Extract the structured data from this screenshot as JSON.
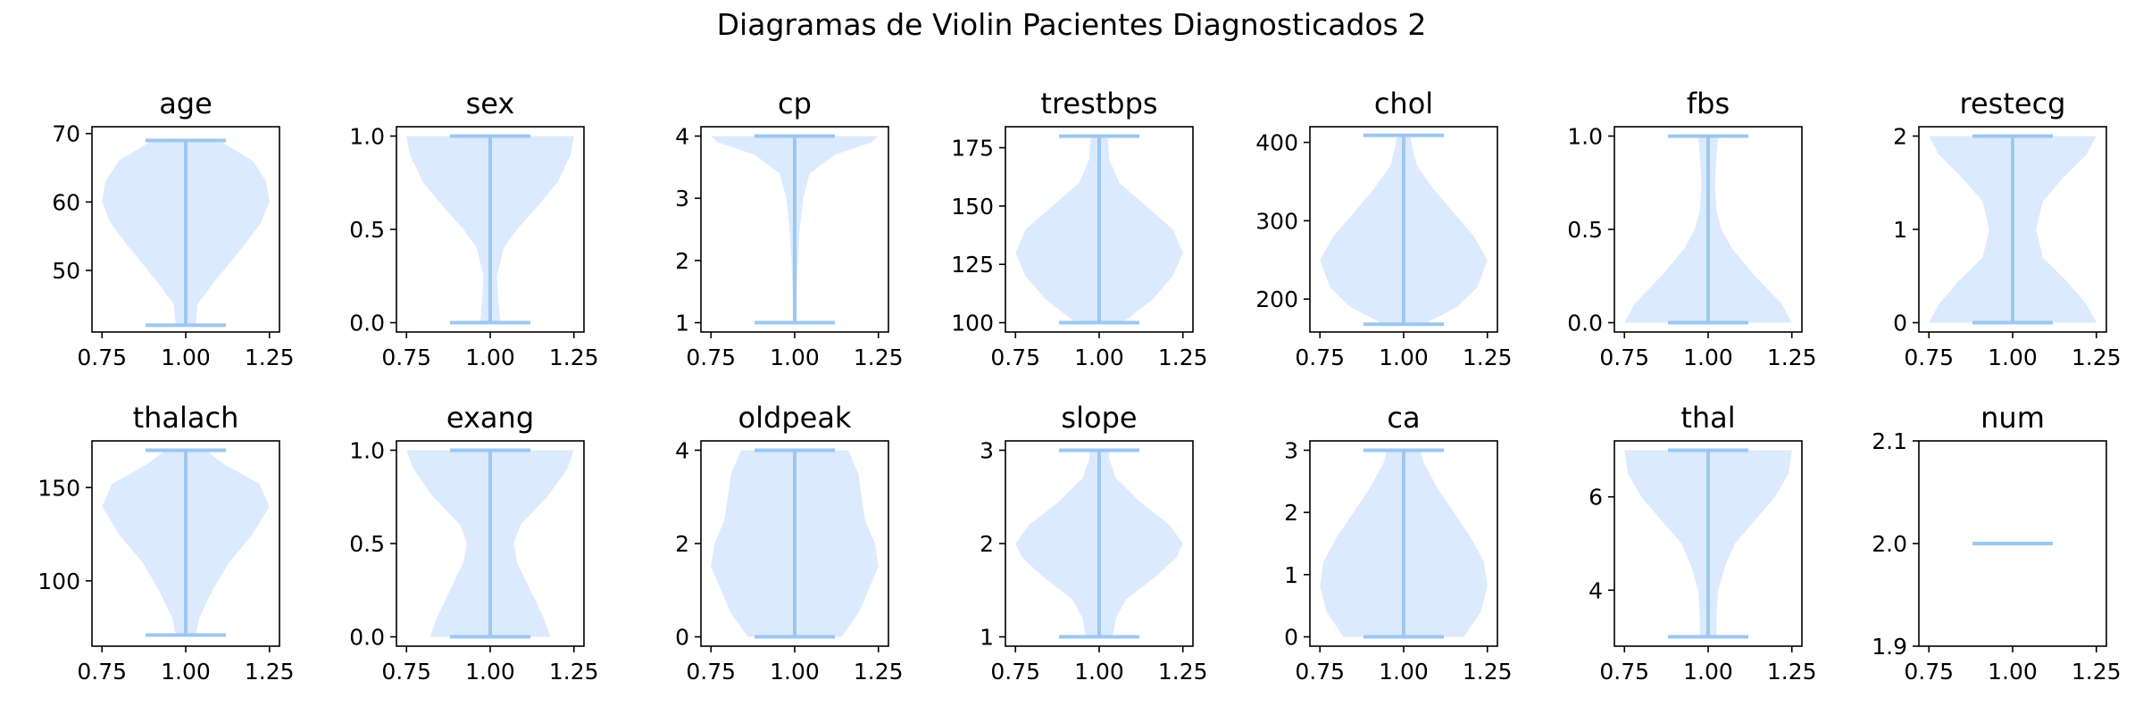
{
  "figure": {
    "title": "Diagramas de Violin Pacientes Diagnosticados 2"
  },
  "colors": {
    "violin_fill": "#dceaff",
    "violin_line": "#9cc7f2",
    "axis": "#000000"
  },
  "chart_data": [
    {
      "type": "violin",
      "title": "age",
      "xlim": [
        0.72,
        1.28
      ],
      "xticks": [
        "0.75",
        "1.00",
        "1.25"
      ],
      "xtick_values": [
        0.75,
        1.0,
        1.25
      ],
      "ylim": [
        41,
        71
      ],
      "yticks": [
        "50",
        "60",
        "70"
      ],
      "ytick_values": [
        50,
        60,
        70
      ],
      "min": 42,
      "max": 69,
      "density": [
        [
          42,
          0.03
        ],
        [
          45,
          0.035
        ],
        [
          48,
          0.08
        ],
        [
          51,
          0.13
        ],
        [
          54,
          0.18
        ],
        [
          57,
          0.225
        ],
        [
          60,
          0.25
        ],
        [
          63,
          0.24
        ],
        [
          66,
          0.2
        ],
        [
          69,
          0.1
        ]
      ]
    },
    {
      "type": "violin",
      "title": "sex",
      "xlim": [
        0.72,
        1.28
      ],
      "xticks": [
        "0.75",
        "1.00",
        "1.25"
      ],
      "xtick_values": [
        0.75,
        1.0,
        1.25
      ],
      "ylim": [
        -0.05,
        1.05
      ],
      "yticks": [
        "0.0",
        "0.5",
        "1.0"
      ],
      "ytick_values": [
        0.0,
        0.5,
        1.0
      ],
      "min": 0,
      "max": 1,
      "density": [
        [
          0,
          0.03
        ],
        [
          0.1,
          0.025
        ],
        [
          0.25,
          0.02
        ],
        [
          0.4,
          0.04
        ],
        [
          0.5,
          0.08
        ],
        [
          0.6,
          0.13
        ],
        [
          0.75,
          0.2
        ],
        [
          0.9,
          0.24
        ],
        [
          1.0,
          0.25
        ]
      ]
    },
    {
      "type": "violin",
      "title": "cp",
      "xlim": [
        0.72,
        1.28
      ],
      "xticks": [
        "0.75",
        "1.00",
        "1.25"
      ],
      "xtick_values": [
        0.75,
        1.0,
        1.25
      ],
      "ylim": [
        0.85,
        4.15
      ],
      "yticks": [
        "1",
        "2",
        "3",
        "4"
      ],
      "ytick_values": [
        1,
        2,
        3,
        4
      ],
      "min": 1,
      "max": 4,
      "density": [
        [
          1.0,
          0.005
        ],
        [
          1.5,
          0.006
        ],
        [
          2.0,
          0.01
        ],
        [
          2.5,
          0.015
        ],
        [
          3.0,
          0.025
        ],
        [
          3.4,
          0.045
        ],
        [
          3.7,
          0.12
        ],
        [
          3.9,
          0.23
        ],
        [
          4.0,
          0.25
        ]
      ]
    },
    {
      "type": "violin",
      "title": "trestbps",
      "xlim": [
        0.72,
        1.28
      ],
      "xticks": [
        "0.75",
        "1.00",
        "1.25"
      ],
      "xtick_values": [
        0.75,
        1.0,
        1.25
      ],
      "ylim": [
        96,
        184
      ],
      "yticks": [
        "100",
        "125",
        "150",
        "175"
      ],
      "ytick_values": [
        100,
        125,
        150,
        175
      ],
      "min": 100,
      "max": 180,
      "density": [
        [
          100,
          0.07
        ],
        [
          110,
          0.16
        ],
        [
          120,
          0.22
        ],
        [
          130,
          0.25
        ],
        [
          140,
          0.22
        ],
        [
          150,
          0.14
        ],
        [
          160,
          0.06
        ],
        [
          170,
          0.03
        ],
        [
          180,
          0.025
        ]
      ]
    },
    {
      "type": "violin",
      "title": "chol",
      "xlim": [
        0.72,
        1.28
      ],
      "xticks": [
        "0.75",
        "1.00",
        "1.25"
      ],
      "xtick_values": [
        0.75,
        1.0,
        1.25
      ],
      "ylim": [
        158,
        420
      ],
      "yticks": [
        "200",
        "300",
        "400"
      ],
      "ytick_values": [
        200,
        300,
        400
      ],
      "min": 168,
      "max": 409,
      "density": [
        [
          168,
          0.06
        ],
        [
          190,
          0.16
        ],
        [
          215,
          0.22
        ],
        [
          250,
          0.25
        ],
        [
          280,
          0.21
        ],
        [
          310,
          0.15
        ],
        [
          340,
          0.09
        ],
        [
          370,
          0.04
        ],
        [
          395,
          0.025
        ],
        [
          409,
          0.02
        ]
      ]
    },
    {
      "type": "violin",
      "title": "fbs",
      "xlim": [
        0.72,
        1.28
      ],
      "xticks": [
        "0.75",
        "1.00",
        "1.25"
      ],
      "xtick_values": [
        0.75,
        1.0,
        1.25
      ],
      "ylim": [
        -0.05,
        1.05
      ],
      "yticks": [
        "0.0",
        "0.5",
        "1.0"
      ],
      "ytick_values": [
        0.0,
        0.5,
        1.0
      ],
      "min": 0,
      "max": 1,
      "density": [
        [
          0,
          0.25
        ],
        [
          0.1,
          0.22
        ],
        [
          0.25,
          0.14
        ],
        [
          0.4,
          0.07
        ],
        [
          0.5,
          0.04
        ],
        [
          0.6,
          0.025
        ],
        [
          0.75,
          0.02
        ],
        [
          0.9,
          0.025
        ],
        [
          1.0,
          0.03
        ]
      ]
    },
    {
      "type": "violin",
      "title": "restecg",
      "xlim": [
        0.72,
        1.28
      ],
      "xticks": [
        "0.75",
        "1.00",
        "1.25"
      ],
      "xtick_values": [
        0.75,
        1.0,
        1.25
      ],
      "ylim": [
        -0.1,
        2.1
      ],
      "yticks": [
        "0",
        "1",
        "2"
      ],
      "ytick_values": [
        0,
        1,
        2
      ],
      "min": 0,
      "max": 2,
      "density": [
        [
          0,
          0.25
        ],
        [
          0.2,
          0.22
        ],
        [
          0.45,
          0.16
        ],
        [
          0.7,
          0.09
        ],
        [
          1.0,
          0.07
        ],
        [
          1.3,
          0.09
        ],
        [
          1.55,
          0.15
        ],
        [
          1.8,
          0.22
        ],
        [
          2.0,
          0.25
        ]
      ]
    },
    {
      "type": "violin",
      "title": "thalach",
      "xlim": [
        0.72,
        1.28
      ],
      "xticks": [
        "0.75",
        "1.00",
        "1.25"
      ],
      "xtick_values": [
        0.75,
        1.0,
        1.25
      ],
      "ylim": [
        65,
        175
      ],
      "yticks": [
        "100",
        "150"
      ],
      "ytick_values": [
        100,
        150
      ],
      "min": 71,
      "max": 170,
      "density": [
        [
          71,
          0.03
        ],
        [
          80,
          0.04
        ],
        [
          95,
          0.08
        ],
        [
          110,
          0.13
        ],
        [
          125,
          0.2
        ],
        [
          140,
          0.25
        ],
        [
          152,
          0.22
        ],
        [
          162,
          0.12
        ],
        [
          170,
          0.06
        ]
      ]
    },
    {
      "type": "violin",
      "title": "exang",
      "xlim": [
        0.72,
        1.28
      ],
      "xticks": [
        "0.75",
        "1.00",
        "1.25"
      ],
      "xtick_values": [
        0.75,
        1.0,
        1.25
      ],
      "ylim": [
        -0.05,
        1.05
      ],
      "yticks": [
        "0.0",
        "0.5",
        "1.0"
      ],
      "ytick_values": [
        0.0,
        0.5,
        1.0
      ],
      "min": 0,
      "max": 1,
      "density": [
        [
          0,
          0.18
        ],
        [
          0.1,
          0.16
        ],
        [
          0.25,
          0.12
        ],
        [
          0.4,
          0.08
        ],
        [
          0.5,
          0.07
        ],
        [
          0.6,
          0.09
        ],
        [
          0.75,
          0.17
        ],
        [
          0.9,
          0.23
        ],
        [
          1.0,
          0.25
        ]
      ]
    },
    {
      "type": "violin",
      "title": "oldpeak",
      "xlim": [
        0.72,
        1.28
      ],
      "xticks": [
        "0.75",
        "1.00",
        "1.25"
      ],
      "xtick_values": [
        0.75,
        1.0,
        1.25
      ],
      "ylim": [
        -0.2,
        4.2
      ],
      "yticks": [
        "0",
        "2",
        "4"
      ],
      "ytick_values": [
        0,
        2,
        4
      ],
      "min": 0,
      "max": 4,
      "density": [
        [
          0,
          0.14
        ],
        [
          0.5,
          0.19
        ],
        [
          1.0,
          0.22
        ],
        [
          1.5,
          0.25
        ],
        [
          2.0,
          0.24
        ],
        [
          2.5,
          0.21
        ],
        [
          3.0,
          0.2
        ],
        [
          3.5,
          0.19
        ],
        [
          4.0,
          0.16
        ]
      ]
    },
    {
      "type": "violin",
      "title": "slope",
      "xlim": [
        0.72,
        1.28
      ],
      "xticks": [
        "0.75",
        "1.00",
        "1.25"
      ],
      "xtick_values": [
        0.75,
        1.0,
        1.25
      ],
      "ylim": [
        0.9,
        3.1
      ],
      "yticks": [
        "1",
        "2",
        "3"
      ],
      "ytick_values": [
        1,
        2,
        3
      ],
      "min": 1,
      "max": 3,
      "density": [
        [
          1.0,
          0.04
        ],
        [
          1.2,
          0.05
        ],
        [
          1.4,
          0.08
        ],
        [
          1.65,
          0.17
        ],
        [
          1.85,
          0.23
        ],
        [
          2.0,
          0.25
        ],
        [
          2.2,
          0.21
        ],
        [
          2.45,
          0.12
        ],
        [
          2.7,
          0.05
        ],
        [
          2.9,
          0.03
        ],
        [
          3.0,
          0.03
        ]
      ]
    },
    {
      "type": "violin",
      "title": "ca",
      "xlim": [
        0.72,
        1.28
      ],
      "xticks": [
        "0.75",
        "1.00",
        "1.25"
      ],
      "xtick_values": [
        0.75,
        1.0,
        1.25
      ],
      "ylim": [
        -0.15,
        3.15
      ],
      "yticks": [
        "0",
        "1",
        "2",
        "3"
      ],
      "ytick_values": [
        0,
        1,
        2,
        3
      ],
      "min": 0,
      "max": 3,
      "density": [
        [
          0,
          0.18
        ],
        [
          0.4,
          0.23
        ],
        [
          0.8,
          0.25
        ],
        [
          1.2,
          0.24
        ],
        [
          1.6,
          0.2
        ],
        [
          2.0,
          0.15
        ],
        [
          2.4,
          0.1
        ],
        [
          2.8,
          0.06
        ],
        [
          3.0,
          0.05
        ]
      ]
    },
    {
      "type": "violin",
      "title": "thal",
      "xlim": [
        0.72,
        1.28
      ],
      "xticks": [
        "0.75",
        "1.00",
        "1.25"
      ],
      "xtick_values": [
        0.75,
        1.0,
        1.25
      ],
      "ylim": [
        2.8,
        7.2
      ],
      "yticks": [
        "4",
        "6"
      ],
      "ytick_values": [
        4,
        6
      ],
      "min": 3,
      "max": 7,
      "density": [
        [
          3.0,
          0.025
        ],
        [
          3.5,
          0.025
        ],
        [
          4.0,
          0.03
        ],
        [
          4.5,
          0.05
        ],
        [
          5.0,
          0.08
        ],
        [
          5.5,
          0.14
        ],
        [
          6.0,
          0.2
        ],
        [
          6.5,
          0.24
        ],
        [
          7.0,
          0.25
        ]
      ]
    },
    {
      "type": "violin",
      "title": "num",
      "xlim": [
        0.72,
        1.28
      ],
      "xticks": [
        "0.75",
        "1.00",
        "1.25"
      ],
      "xtick_values": [
        0.75,
        1.0,
        1.25
      ],
      "ylim": [
        1.9,
        2.1
      ],
      "yticks": [
        "1.9",
        "2.0",
        "2.1"
      ],
      "ytick_values": [
        1.9,
        2.0,
        2.1
      ],
      "min": 2,
      "max": 2,
      "density": []
    }
  ]
}
